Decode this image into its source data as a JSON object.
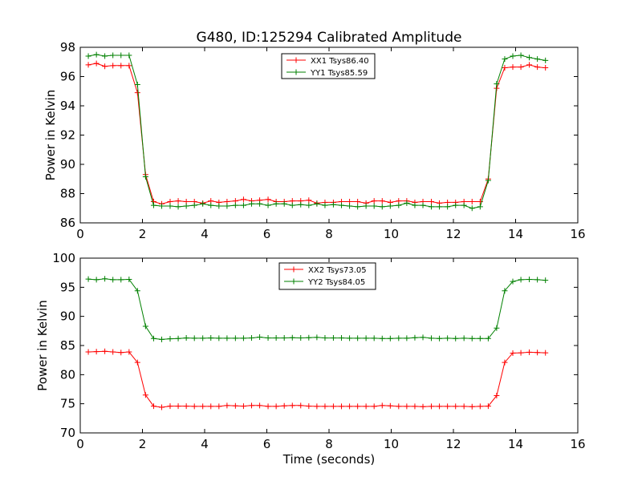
{
  "title": "G480, ID:125294 Calibrated Amplitude",
  "xlabel": "Time (seconds)",
  "chart_data": [
    {
      "type": "line",
      "ylabel": "Power in Kelvin",
      "xlim": [
        0,
        16
      ],
      "ylim": [
        86,
        98
      ],
      "xticks": [
        "0",
        "2",
        "4",
        "6",
        "8",
        "10",
        "12",
        "14",
        "16"
      ],
      "yticks": [
        "86",
        "88",
        "90",
        "92",
        "94",
        "96",
        "98"
      ],
      "legend_position": "top-center",
      "series": [
        {
          "name": "XX1 Tsys86.40",
          "color": "#ff0000",
          "x": [
            0.26,
            0.52,
            0.79,
            1.05,
            1.31,
            1.57,
            1.84,
            2.1,
            2.36,
            2.62,
            2.89,
            3.15,
            3.41,
            3.67,
            3.94,
            4.2,
            4.46,
            4.72,
            4.99,
            5.25,
            5.51,
            5.77,
            6.04,
            6.3,
            6.56,
            6.82,
            7.09,
            7.35,
            7.61,
            7.87,
            8.14,
            8.4,
            8.66,
            8.92,
            9.19,
            9.45,
            9.71,
            9.97,
            10.24,
            10.5,
            10.76,
            11.02,
            11.29,
            11.55,
            11.81,
            12.07,
            12.34,
            12.6,
            12.86,
            13.12,
            13.39,
            13.65,
            13.91,
            14.17,
            14.44,
            14.7,
            14.96
          ],
          "y": [
            96.8,
            96.9,
            96.7,
            96.75,
            96.75,
            96.75,
            94.9,
            89.3,
            87.45,
            87.3,
            87.45,
            87.5,
            87.45,
            87.45,
            87.35,
            87.5,
            87.4,
            87.45,
            87.5,
            87.6,
            87.5,
            87.55,
            87.6,
            87.45,
            87.45,
            87.5,
            87.5,
            87.55,
            87.35,
            87.4,
            87.4,
            87.45,
            87.45,
            87.45,
            87.35,
            87.5,
            87.5,
            87.4,
            87.5,
            87.5,
            87.4,
            87.45,
            87.45,
            87.35,
            87.4,
            87.4,
            87.45,
            87.45,
            87.45,
            89.0,
            95.2,
            96.6,
            96.65,
            96.65,
            96.8,
            96.65,
            96.6
          ]
        },
        {
          "name": "YY1 Tsys85.59",
          "color": "#008000",
          "x": [
            0.26,
            0.52,
            0.79,
            1.05,
            1.31,
            1.57,
            1.84,
            2.1,
            2.36,
            2.62,
            2.89,
            3.15,
            3.41,
            3.67,
            3.94,
            4.2,
            4.46,
            4.72,
            4.99,
            5.25,
            5.51,
            5.77,
            6.04,
            6.3,
            6.56,
            6.82,
            7.09,
            7.35,
            7.61,
            7.87,
            8.14,
            8.4,
            8.66,
            8.92,
            9.19,
            9.45,
            9.71,
            9.97,
            10.24,
            10.5,
            10.76,
            11.02,
            11.29,
            11.55,
            11.81,
            12.07,
            12.34,
            12.6,
            12.86,
            13.12,
            13.39,
            13.65,
            13.91,
            14.17,
            14.44,
            14.7,
            14.96
          ],
          "y": [
            97.4,
            97.5,
            97.4,
            97.45,
            97.45,
            97.45,
            95.45,
            89.15,
            87.2,
            87.15,
            87.15,
            87.1,
            87.15,
            87.2,
            87.3,
            87.2,
            87.15,
            87.15,
            87.2,
            87.2,
            87.3,
            87.3,
            87.2,
            87.3,
            87.3,
            87.2,
            87.25,
            87.2,
            87.3,
            87.2,
            87.25,
            87.2,
            87.15,
            87.1,
            87.15,
            87.15,
            87.1,
            87.15,
            87.2,
            87.35,
            87.2,
            87.2,
            87.1,
            87.1,
            87.1,
            87.2,
            87.2,
            87.0,
            87.1,
            88.9,
            95.5,
            97.2,
            97.4,
            97.45,
            97.3,
            97.2,
            97.1
          ]
        }
      ]
    },
    {
      "type": "line",
      "ylabel": "Power in Kelvin",
      "xlabel": "Time (seconds)",
      "xlim": [
        0,
        16
      ],
      "ylim": [
        70,
        100
      ],
      "xticks": [
        "0",
        "2",
        "4",
        "6",
        "8",
        "10",
        "12",
        "14",
        "16"
      ],
      "yticks": [
        "70",
        "75",
        "80",
        "85",
        "90",
        "95",
        "100"
      ],
      "legend_position": "top-center",
      "series": [
        {
          "name": "XX2 Tsys73.05",
          "color": "#ff0000",
          "x": [
            0.26,
            0.52,
            0.79,
            1.05,
            1.31,
            1.57,
            1.84,
            2.1,
            2.36,
            2.62,
            2.89,
            3.15,
            3.41,
            3.67,
            3.94,
            4.2,
            4.46,
            4.72,
            4.99,
            5.25,
            5.51,
            5.77,
            6.04,
            6.3,
            6.56,
            6.82,
            7.09,
            7.35,
            7.61,
            7.87,
            8.14,
            8.4,
            8.66,
            8.92,
            9.19,
            9.45,
            9.71,
            9.97,
            10.24,
            10.5,
            10.76,
            11.02,
            11.29,
            11.55,
            11.81,
            12.07,
            12.34,
            12.6,
            12.86,
            13.12,
            13.39,
            13.65,
            13.91,
            14.17,
            14.44,
            14.7,
            14.96
          ],
          "y": [
            83.9,
            83.95,
            84.0,
            83.9,
            83.8,
            83.9,
            82.1,
            76.5,
            74.6,
            74.4,
            74.6,
            74.6,
            74.6,
            74.55,
            74.55,
            74.55,
            74.55,
            74.7,
            74.65,
            74.6,
            74.7,
            74.7,
            74.55,
            74.55,
            74.65,
            74.7,
            74.7,
            74.6,
            74.55,
            74.55,
            74.55,
            74.55,
            74.55,
            74.55,
            74.55,
            74.55,
            74.7,
            74.65,
            74.55,
            74.55,
            74.55,
            74.5,
            74.55,
            74.55,
            74.55,
            74.55,
            74.55,
            74.5,
            74.55,
            74.6,
            76.4,
            82.1,
            83.7,
            83.75,
            83.85,
            83.8,
            83.75
          ]
        },
        {
          "name": "YY2 Tsys84.05",
          "color": "#008000",
          "x": [
            0.26,
            0.52,
            0.79,
            1.05,
            1.31,
            1.57,
            1.84,
            2.1,
            2.36,
            2.62,
            2.89,
            3.15,
            3.41,
            3.67,
            3.94,
            4.2,
            4.46,
            4.72,
            4.99,
            5.25,
            5.51,
            5.77,
            6.04,
            6.3,
            6.56,
            6.82,
            7.09,
            7.35,
            7.61,
            7.87,
            8.14,
            8.4,
            8.66,
            8.92,
            9.19,
            9.45,
            9.71,
            9.97,
            10.24,
            10.5,
            10.76,
            11.02,
            11.29,
            11.55,
            11.81,
            12.07,
            12.34,
            12.6,
            12.86,
            13.12,
            13.39,
            13.65,
            13.91,
            14.17,
            14.44,
            14.7,
            14.96
          ],
          "y": [
            96.4,
            96.3,
            96.45,
            96.3,
            96.3,
            96.35,
            94.4,
            88.3,
            86.2,
            86.05,
            86.15,
            86.2,
            86.3,
            86.25,
            86.25,
            86.3,
            86.25,
            86.25,
            86.25,
            86.25,
            86.3,
            86.45,
            86.3,
            86.3,
            86.3,
            86.35,
            86.3,
            86.35,
            86.4,
            86.3,
            86.3,
            86.3,
            86.25,
            86.25,
            86.25,
            86.25,
            86.2,
            86.2,
            86.25,
            86.25,
            86.35,
            86.4,
            86.25,
            86.2,
            86.25,
            86.2,
            86.25,
            86.2,
            86.2,
            86.2,
            88.0,
            94.4,
            96.0,
            96.3,
            96.35,
            96.3,
            96.2
          ]
        }
      ]
    }
  ]
}
